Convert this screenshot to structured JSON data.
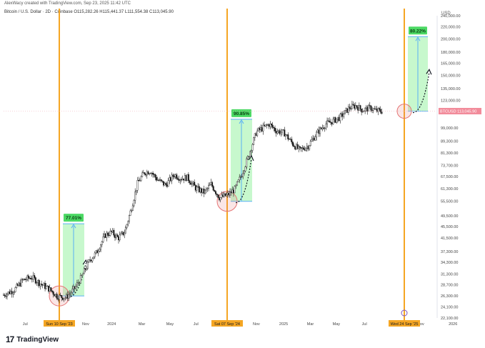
{
  "header": {
    "caption": "AlexWacy created with TradingView.com, Sep 23, 2025 11:42 UTC",
    "symbol": "Bitcoin / U.S. Dollar · 2D · Coinbase",
    "ohlc": "O115,282.26  H115,441.37  L111,554.38  C113,045.90"
  },
  "footer": {
    "logo_mark": "17",
    "brand": "TradingView"
  },
  "colors": {
    "vline": "#f5a623",
    "gain_fill": "#b9f6c0",
    "gain_label": "#4cd964",
    "gain_line": "#5ab0f5",
    "circle": "#e57373",
    "candle": "#1a1a1a",
    "price_badge": "#f28b9a"
  },
  "chart_data": {
    "type": "candlestick",
    "title": "Bitcoin / U.S. Dollar · 2D · Coinbase",
    "y_scale": "log",
    "currency": "USD",
    "y_ticks": [
      22100,
      24100,
      26300,
      28700,
      31300,
      34300,
      37300,
      41500,
      45500,
      49500,
      55500,
      61300,
      67500,
      73700,
      81300,
      89300,
      99000,
      123000,
      135000,
      150000,
      165000,
      180000,
      200000,
      220000,
      240000
    ],
    "x_ticks": [
      "Jul",
      "Nov",
      "2024",
      "Mar",
      "May",
      "Jul",
      "Nov",
      "2025",
      "Mar",
      "May",
      "Jul",
      "Nov",
      "2026"
    ],
    "last_price": {
      "symbol": "BTCUSD",
      "value": "113,045.90"
    },
    "cycles": [
      {
        "date_label": "Sun 10 Sep '23",
        "gain_label": "77.01%",
        "start_price": 26300,
        "end_price": 46500
      },
      {
        "date_label": "Sat 07 Sep '24",
        "gain_label": "90.85%",
        "start_price": 55500,
        "end_price": 106000
      },
      {
        "date_label": "Wed 24 Sep '25",
        "gain_label": "80.22%",
        "start_price": 113000,
        "end_price": 203500
      }
    ],
    "price_path": [
      [
        0,
        26500
      ],
      [
        0.025,
        27600
      ],
      [
        0.045,
        29800
      ],
      [
        0.065,
        30500
      ],
      [
        0.085,
        29000
      ],
      [
        0.105,
        27800
      ],
      [
        0.125,
        26200
      ],
      [
        0.145,
        26000
      ],
      [
        0.165,
        28000
      ],
      [
        0.18,
        30500
      ],
      [
        0.2,
        35000
      ],
      [
        0.215,
        37000
      ],
      [
        0.235,
        42500
      ],
      [
        0.25,
        43500
      ],
      [
        0.265,
        41500
      ],
      [
        0.28,
        43500
      ],
      [
        0.295,
        52000
      ],
      [
        0.31,
        64000
      ],
      [
        0.325,
        69500
      ],
      [
        0.34,
        70500
      ],
      [
        0.355,
        66000
      ],
      [
        0.375,
        63000
      ],
      [
        0.395,
        68500
      ],
      [
        0.41,
        66500
      ],
      [
        0.425,
        67000
      ],
      [
        0.445,
        61500
      ],
      [
        0.465,
        59500
      ],
      [
        0.48,
        63500
      ],
      [
        0.5,
        57000
      ],
      [
        0.52,
        58500
      ],
      [
        0.535,
        61000
      ],
      [
        0.55,
        68000
      ],
      [
        0.565,
        78000
      ],
      [
        0.585,
        96000
      ],
      [
        0.6,
        99000
      ],
      [
        0.615,
        102000
      ],
      [
        0.63,
        97000
      ],
      [
        0.65,
        95000
      ],
      [
        0.67,
        87000
      ],
      [
        0.685,
        83000
      ],
      [
        0.705,
        86000
      ],
      [
        0.725,
        95000
      ],
      [
        0.745,
        102000
      ],
      [
        0.765,
        105000
      ],
      [
        0.78,
        108000
      ],
      [
        0.8,
        116000
      ],
      [
        0.815,
        118000
      ],
      [
        0.83,
        114000
      ],
      [
        0.85,
        116000
      ],
      [
        0.86,
        113500
      ],
      [
        0.875,
        113000
      ]
    ]
  }
}
